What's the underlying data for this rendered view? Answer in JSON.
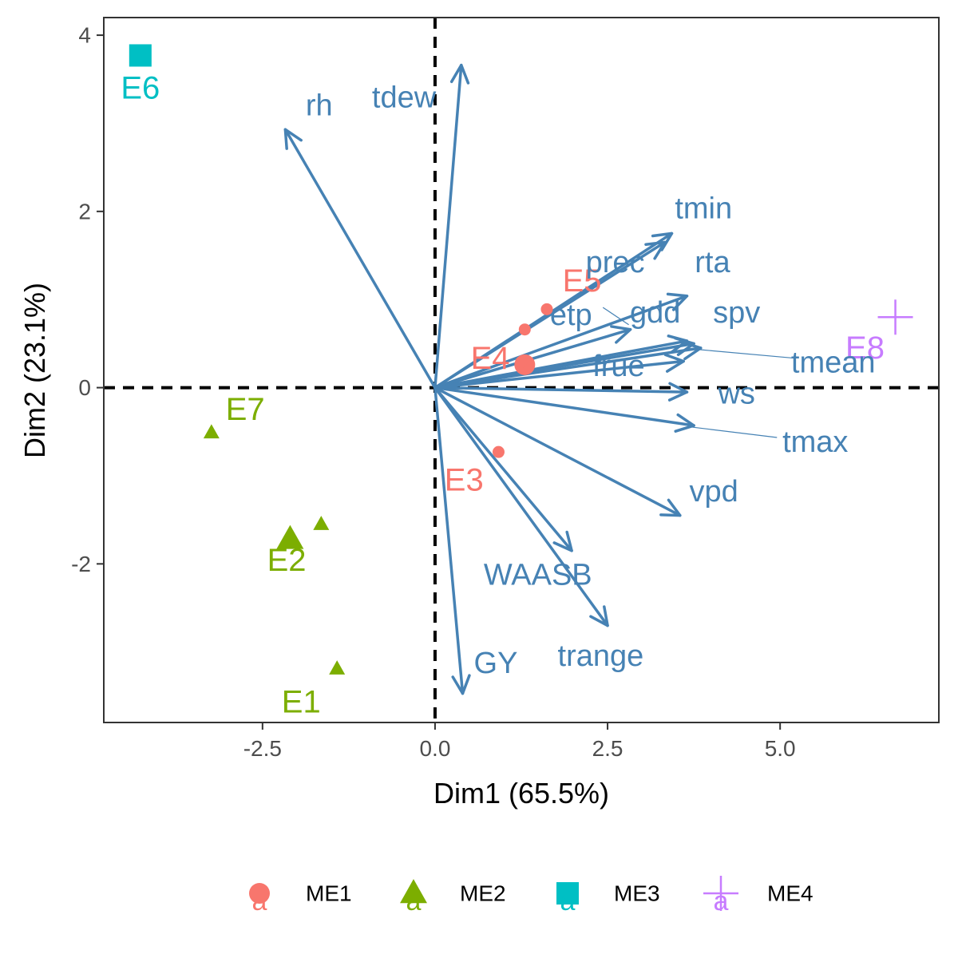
{
  "chart_data": {
    "type": "scatter",
    "title": "",
    "xlabel": "Dim1 (65.5%)",
    "ylabel": "Dim2 (23.1%)",
    "xlim": [
      -4.8,
      7.3
    ],
    "ylim": [
      -3.8,
      4.2
    ],
    "xticks": [
      -2.5,
      0.0,
      2.5,
      5.0
    ],
    "xtick_labels": [
      "-2.5",
      "0.0",
      "2.5",
      "5.0"
    ],
    "yticks": [
      -2,
      0,
      2,
      4
    ],
    "ytick_labels": [
      "-2",
      "0",
      "2",
      "4"
    ],
    "grid": false,
    "reference_lines": [
      {
        "orientation": "vertical",
        "value": 0,
        "style": "dashed"
      },
      {
        "orientation": "horizontal",
        "value": 0,
        "style": "dashed"
      }
    ],
    "series": [
      {
        "name": "ME1",
        "color": "#F8766D",
        "shape": "circle",
        "points": [
          {
            "x": 1.3,
            "y": 0.26,
            "size": "large"
          },
          {
            "x": 1.62,
            "y": 0.89,
            "size": "small"
          },
          {
            "x": 1.3,
            "y": 0.66,
            "size": "small"
          },
          {
            "x": 0.92,
            "y": -0.73,
            "size": "small"
          },
          {
            "x": 1.25,
            "y": 0.29,
            "size": "small"
          }
        ]
      },
      {
        "name": "ME2",
        "color": "#7CAE00",
        "shape": "triangle",
        "points": [
          {
            "x": -3.24,
            "y": -0.51,
            "size": "small"
          },
          {
            "x": -2.1,
            "y": -1.72,
            "size": "large"
          },
          {
            "x": -1.65,
            "y": -1.55,
            "size": "small"
          },
          {
            "x": -1.42,
            "y": -3.19,
            "size": "small"
          }
        ]
      },
      {
        "name": "ME3",
        "color": "#00BFC4",
        "shape": "square",
        "points": [
          {
            "x": -4.27,
            "y": 3.77,
            "size": "large"
          }
        ]
      },
      {
        "name": "ME4",
        "color": "#C77CFF",
        "shape": "cross",
        "points": [
          {
            "x": 6.67,
            "y": 0.8,
            "size": "large"
          }
        ]
      }
    ],
    "environment_labels": [
      {
        "text": "E1",
        "x": -1.94,
        "y": -3.57,
        "color": "#7CAE00"
      },
      {
        "text": "E2",
        "x": -2.15,
        "y": -1.96,
        "color": "#7CAE00"
      },
      {
        "text": "E3",
        "x": 0.42,
        "y": -1.05,
        "color": "#F8766D"
      },
      {
        "text": "E4",
        "x": 0.8,
        "y": 0.33,
        "color": "#F8766D"
      },
      {
        "text": "E5",
        "x": 2.13,
        "y": 1.21,
        "color": "#F8766D"
      },
      {
        "text": "E6",
        "x": -4.27,
        "y": 3.4,
        "color": "#00BFC4"
      },
      {
        "text": "E7",
        "x": -2.75,
        "y": -0.25,
        "color": "#7CAE00"
      },
      {
        "text": "E8",
        "x": 6.23,
        "y": 0.45,
        "color": "#C77CFF"
      }
    ],
    "arrow_color": "#4682B4",
    "arrows": [
      {
        "name": "rh",
        "x": -2.17,
        "y": 2.93,
        "label_x": -1.68,
        "label_y": 3.2
      },
      {
        "name": "tdew",
        "x": 0.38,
        "y": 3.66,
        "label_x": -0.45,
        "label_y": 3.29
      },
      {
        "name": "tmin",
        "x": 3.43,
        "y": 1.75,
        "label_x": 3.89,
        "label_y": 2.03
      },
      {
        "name": "prec",
        "x": 3.33,
        "y": 1.65,
        "label_x": 2.61,
        "label_y": 1.42
      },
      {
        "name": "rta",
        "x": 3.65,
        "y": 1.04,
        "label_x": 4.02,
        "label_y": 1.42
      },
      {
        "name": "etp",
        "x": 2.83,
        "y": 0.66,
        "label_x": 1.97,
        "label_y": 0.82
      },
      {
        "name": "gdd",
        "x": 3.65,
        "y": 0.53,
        "label_x": 3.19,
        "label_y": 0.85
      },
      {
        "name": "spv",
        "x": 3.75,
        "y": 0.5,
        "label_x": 4.37,
        "label_y": 0.85
      },
      {
        "name": "tmean",
        "x": 3.85,
        "y": 0.45,
        "label_x": 5.77,
        "label_y": 0.28
      },
      {
        "name": "frue",
        "x": 3.6,
        "y": 0.3,
        "label_x": 2.66,
        "label_y": 0.24
      },
      {
        "name": "ws",
        "x": 3.65,
        "y": -0.05,
        "label_x": 4.37,
        "label_y": -0.07
      },
      {
        "name": "tmax",
        "x": 3.75,
        "y": -0.43,
        "label_x": 5.51,
        "label_y": -0.62
      },
      {
        "name": "vpd",
        "x": 3.55,
        "y": -1.45,
        "label_x": 4.04,
        "label_y": -1.18
      },
      {
        "name": "WAASB",
        "x": 1.98,
        "y": -1.85,
        "label_x": 1.49,
        "label_y": -2.13
      },
      {
        "name": "trange",
        "x": 2.5,
        "y": -2.7,
        "label_x": 2.4,
        "label_y": -3.05
      },
      {
        "name": "GY",
        "x": 0.4,
        "y": -3.47,
        "label_x": 0.88,
        "label_y": -3.13
      }
    ],
    "legend": {
      "position": "bottom",
      "entries": [
        "ME1",
        "ME2",
        "ME3",
        "ME4"
      ],
      "key_overlay_letter": "a"
    }
  }
}
